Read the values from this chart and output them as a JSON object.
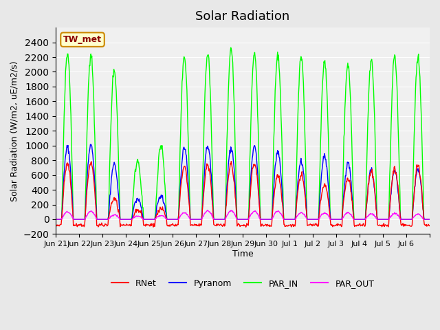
{
  "title": "Solar Radiation",
  "ylabel": "Solar Radiation (W/m2, uE/m2/s)",
  "xlabel": "Time",
  "ylim": [
    -200,
    2600
  ],
  "yticks": [
    -200,
    0,
    200,
    400,
    600,
    800,
    1000,
    1200,
    1400,
    1600,
    1800,
    2000,
    2200,
    2400
  ],
  "annotation_text": "TW_met",
  "annotation_bg": "#FFFFCC",
  "annotation_border": "#CC8800",
  "legend_labels": [
    "RNet",
    "Pyranom",
    "PAR_IN",
    "PAR_OUT"
  ],
  "line_colors": [
    "#FF0000",
    "#0000FF",
    "#00FF00",
    "#FF00FF"
  ],
  "bg_color": "#E8E8E8",
  "plot_bg_color": "#F0F0F0",
  "n_days": 16,
  "tick_labels": [
    "Jun 21",
    "Jun 22",
    "Jun 23",
    "Jun 24",
    "Jun 25",
    "Jun 26",
    "Jun 27",
    "Jun 28",
    "Jun 29",
    "Jun 30",
    "Jul 1",
    "Jul 2",
    "Jul 3",
    "Jul 4",
    "Jul 5",
    "Jul 6",
    ""
  ],
  "tick_positions": [
    0,
    1,
    2,
    3,
    4,
    5,
    6,
    7,
    8,
    9,
    10,
    11,
    12,
    13,
    14,
    15,
    16
  ],
  "par_in_peaks": [
    2260,
    2250,
    2030,
    800,
    1000,
    2200,
    2250,
    2300,
    2250,
    2230,
    2210,
    2150,
    2110,
    2170,
    2200,
    2200
  ],
  "pyranom_peaks": [
    980,
    1000,
    750,
    280,
    320,
    970,
    1000,
    970,
    980,
    920,
    780,
    860,
    760,
    660,
    640,
    670
  ],
  "rnet_peaks": [
    750,
    760,
    280,
    120,
    140,
    720,
    740,
    750,
    760,
    600,
    600,
    470,
    560,
    640,
    690,
    720
  ],
  "par_out_peaks": [
    100,
    110,
    60,
    40,
    50,
    90,
    115,
    115,
    110,
    110,
    90,
    85,
    90,
    75,
    80,
    70
  ]
}
